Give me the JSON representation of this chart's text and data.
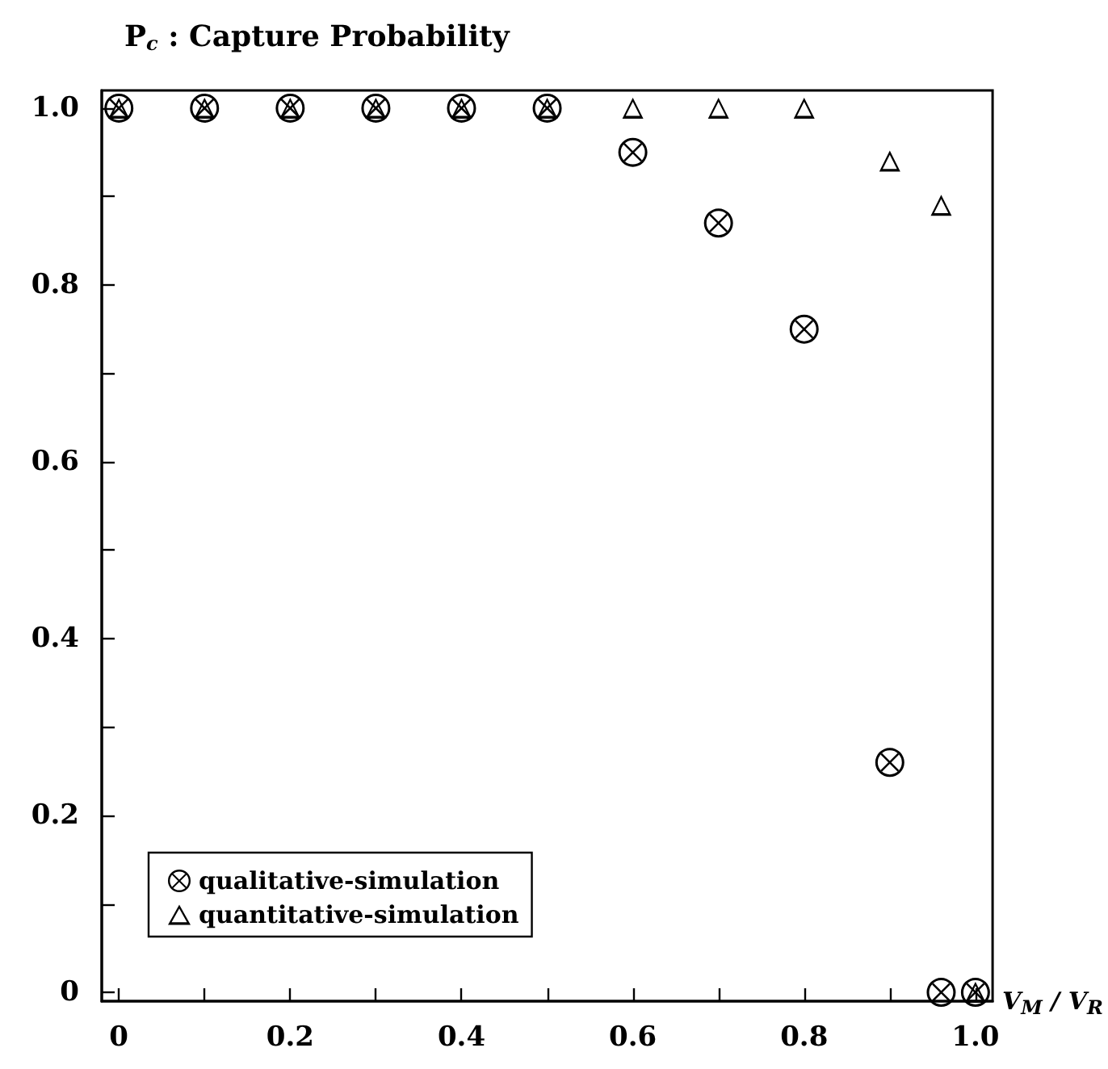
{
  "chart_data": {
    "type": "scatter",
    "title": "P$_{c}$ : Capture Probability",
    "xlabel": "V$_{M}$ / V$_{R}$",
    "xlim": [
      -0.02,
      1.02
    ],
    "ylim": [
      -0.01,
      1.02
    ],
    "xticks": [
      0,
      {
        "value": 0.1,
        "label": null
      },
      {
        "value": 0.2,
        "label": "0.2"
      },
      {
        "value": 0.3,
        "label": null
      },
      {
        "value": 0.4,
        "label": "0.4"
      },
      {
        "value": 0.5,
        "label": null
      },
      {
        "value": 0.6,
        "label": "0.6"
      },
      {
        "value": 0.7,
        "label": null
      },
      {
        "value": 0.8,
        "label": "0.8"
      },
      {
        "value": 0.9,
        "label": null
      },
      {
        "value": 1,
        "label": "1.0"
      }
    ],
    "yticks": [
      0,
      {
        "value": 0.1,
        "label": null
      },
      {
        "value": 0.2,
        "label": "0.2"
      },
      {
        "value": 0.3,
        "label": null
      },
      {
        "value": 0.4,
        "label": "0.4"
      },
      {
        "value": 0.5,
        "label": null
      },
      {
        "value": 0.6,
        "label": "0.6"
      },
      {
        "value": 0.7,
        "label": null
      },
      {
        "value": 0.8,
        "label": "0.8"
      },
      {
        "value": 0.9,
        "label": null
      },
      {
        "value": 1,
        "label": "1.0"
      }
    ],
    "grid": false,
    "legend": "bottom left",
    "series": [
      {
        "name": "qualitative-simulation",
        "color": "#000000",
        "marker": "cross",
        "x": [
          0,
          0.1,
          0.2,
          0.3,
          0.4,
          0.5,
          0.6,
          0.7,
          0.8,
          0.9,
          0.96,
          1.0
        ],
        "values": [
          1,
          1,
          1,
          1,
          1,
          1,
          0.95,
          0.87,
          0.75,
          0.26,
          0,
          0
        ]
      },
      {
        "name": "quantitative-simulation",
        "color": "#000000",
        "marker": "triangle",
        "x": [
          0,
          0.1,
          0.2,
          0.3,
          0.4,
          0.5,
          0.6,
          0.7,
          0.8,
          0.9,
          0.96,
          1.0
        ],
        "values": [
          1,
          1,
          1,
          1,
          1,
          1,
          1,
          1,
          1,
          0.94,
          0.89,
          0
        ]
      }
    ]
  }
}
